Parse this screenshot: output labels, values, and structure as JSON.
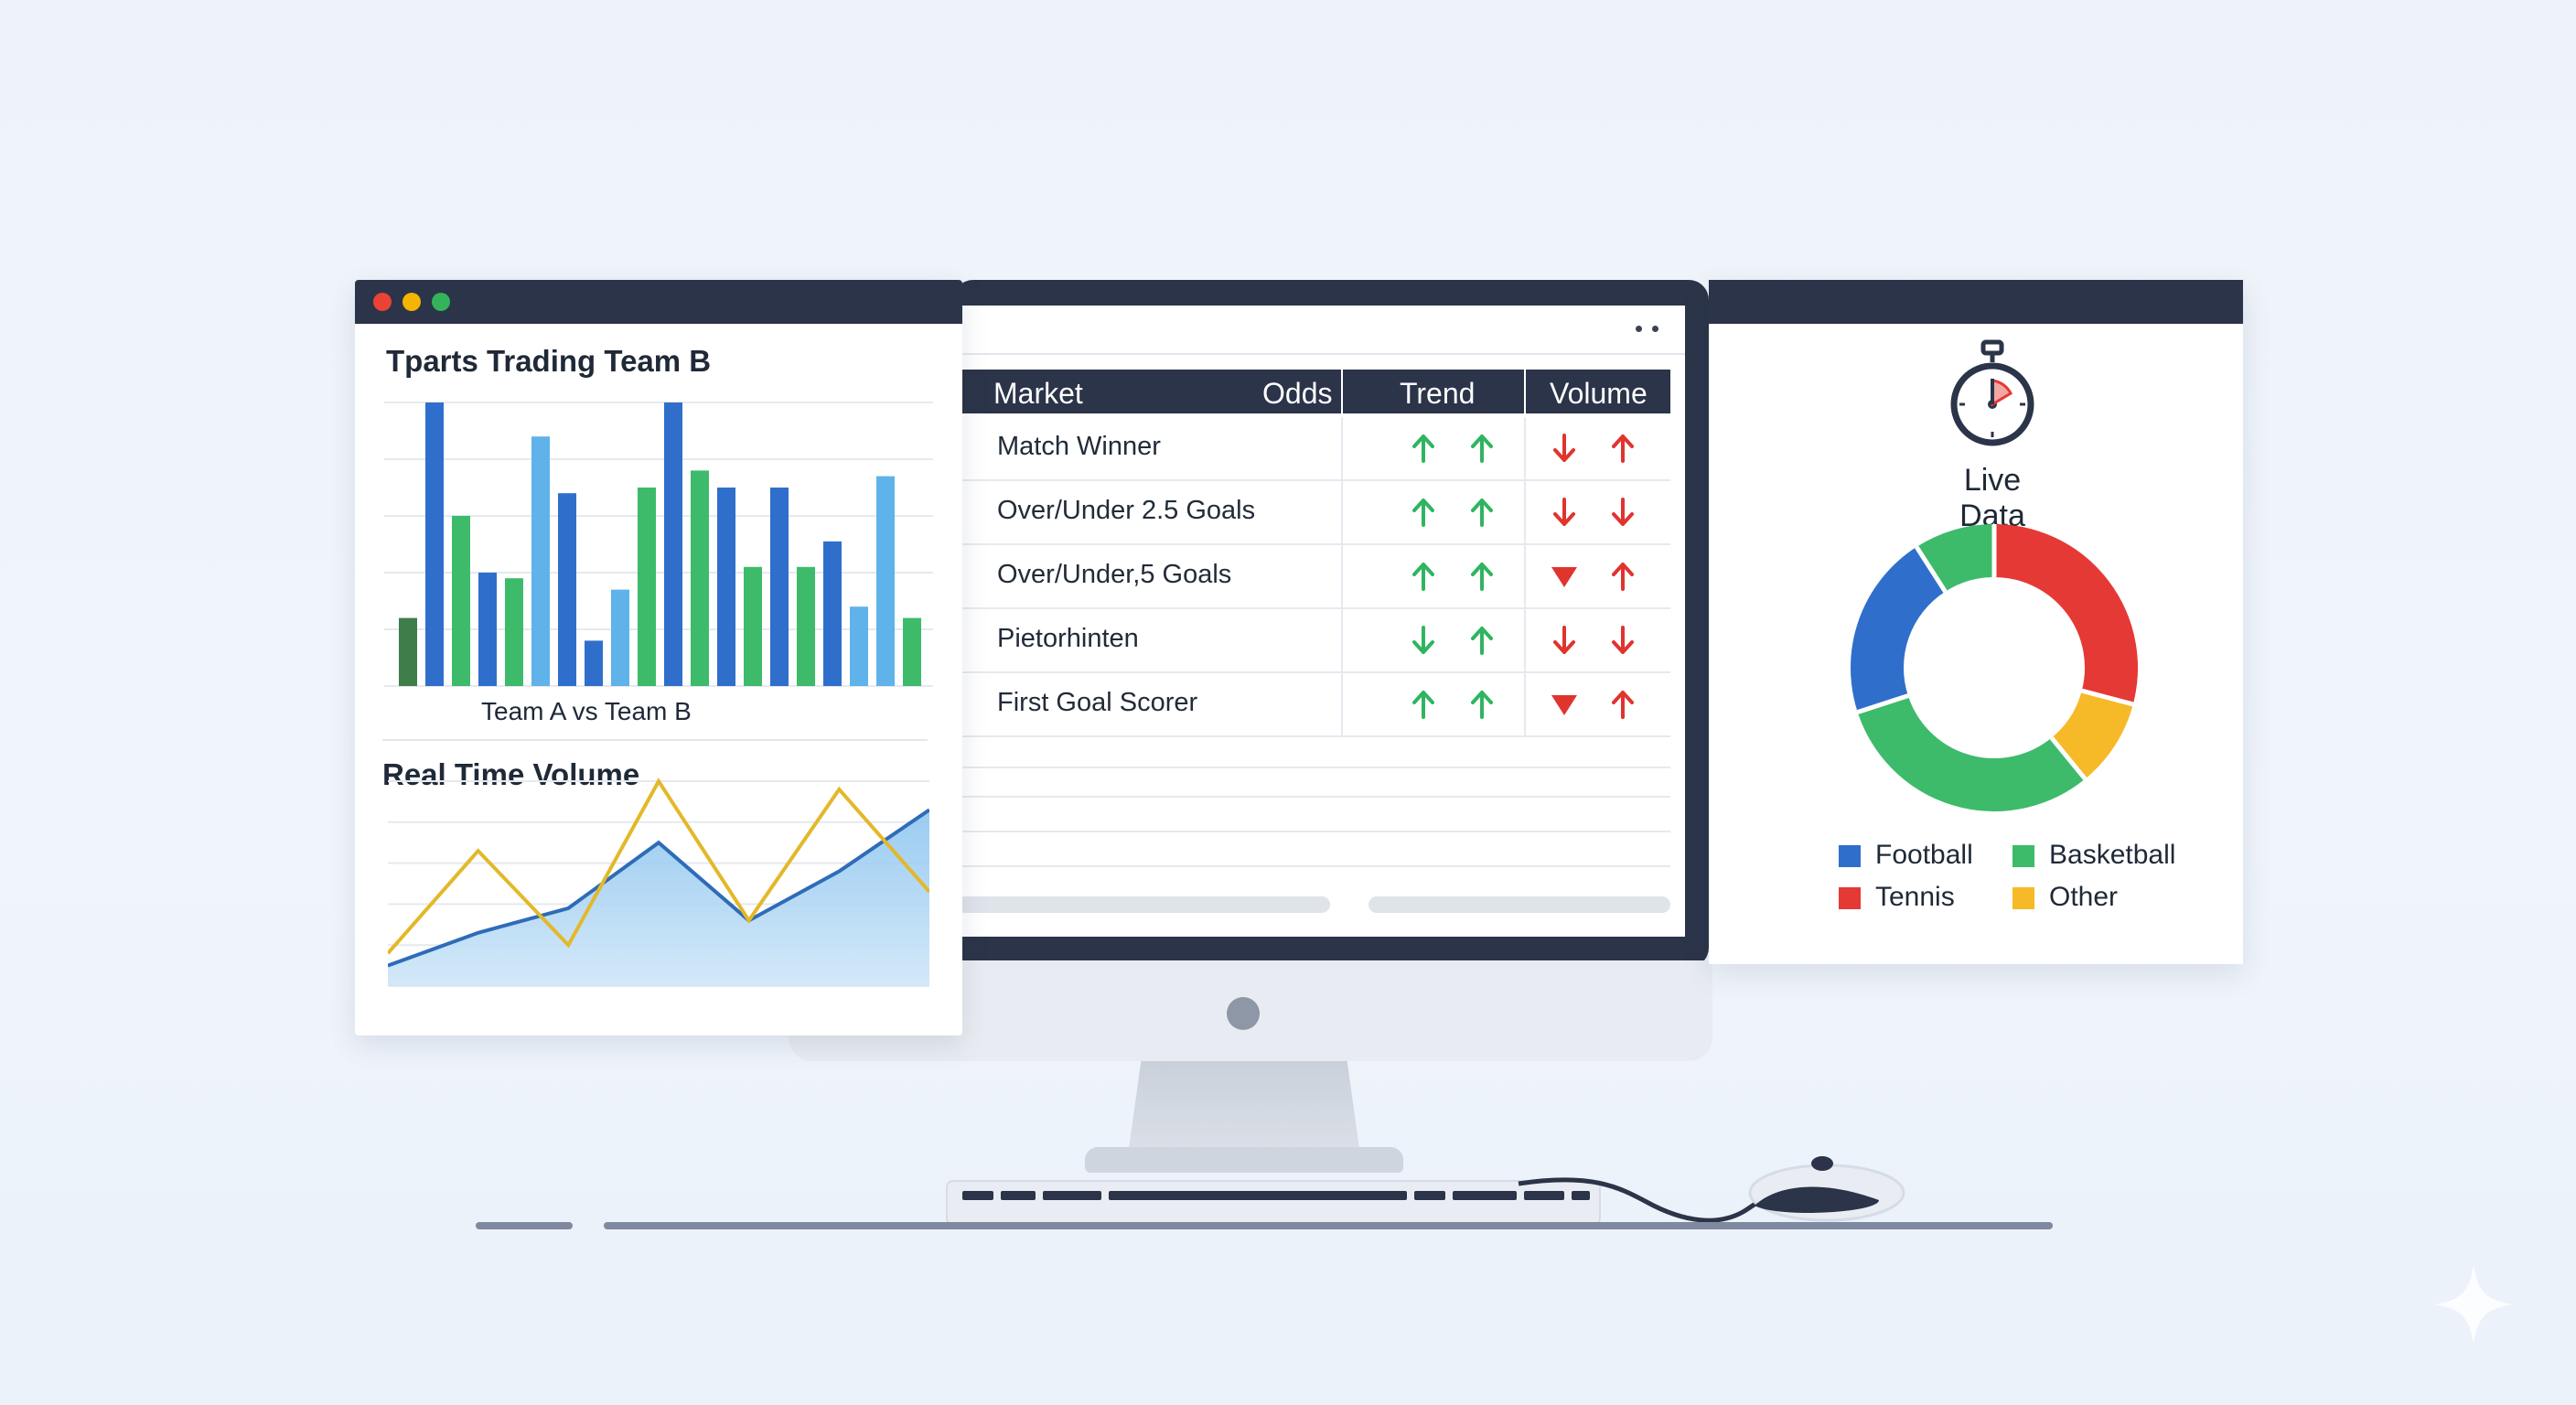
{
  "left_panel": {
    "chart_title": "Tparts Trading Team B",
    "chart_xlabel": "Team A vs Team B",
    "volume_title": "Real Time Volume"
  },
  "table": {
    "headers": {
      "market": "Market",
      "odds": "Odds",
      "trend": "Trend",
      "volume": "Volume"
    },
    "rows": [
      {
        "market": "Match Winner",
        "trend": [
          "up",
          "up"
        ],
        "volume": [
          "down",
          "up"
        ]
      },
      {
        "market": "Over/Under 2.5 Goals",
        "trend": [
          "up",
          "up"
        ],
        "volume": [
          "down",
          "down"
        ]
      },
      {
        "market": "Over/Under,5 Goals",
        "trend": [
          "up",
          "up"
        ],
        "volume": [
          "down-triangle",
          "up"
        ]
      },
      {
        "market": "Pietorhinten",
        "trend": [
          "down",
          "up"
        ],
        "volume": [
          "down",
          "down"
        ]
      },
      {
        "market": "First Goal Scorer",
        "trend": [
          "up",
          "up"
        ],
        "volume": [
          "down-triangle",
          "up"
        ]
      }
    ]
  },
  "right_panel": {
    "title": "Live Data",
    "icon": "stopwatch-icon"
  },
  "colors": {
    "dark_blue": "#2f6fcb",
    "light_blue": "#5fb3ea",
    "green": "#3dbb6b",
    "olive": "#3f7d4a",
    "red": "#e53935",
    "yellow": "#f6b928",
    "gold_line": "#e3b829",
    "blue_line": "#2e6cb8",
    "up_arrow": "#2fb560",
    "down_arrow": "#e0342e"
  },
  "chart_data": [
    {
      "type": "bar",
      "title": "Tparts Trading Team B",
      "xlabel": "Team A vs Team B",
      "ylim": [
        0,
        100
      ],
      "grid": true,
      "values": [
        24,
        100,
        60,
        40,
        38,
        88,
        68,
        16,
        34,
        70,
        100,
        76,
        70,
        42,
        70,
        42,
        51,
        28,
        74,
        24
      ],
      "bar_colors": [
        "olive",
        "dark_blue",
        "green",
        "dark_blue",
        "green",
        "light_blue",
        "dark_blue",
        "dark_blue",
        "light_blue",
        "green",
        "dark_blue",
        "green",
        "dark_blue",
        "green",
        "dark_blue",
        "green",
        "dark_blue",
        "light_blue",
        "light_blue",
        "green"
      ]
    },
    {
      "type": "area",
      "title": "Real Time Volume",
      "ylim": [
        0,
        100
      ],
      "grid": true,
      "x": [
        0,
        1,
        2,
        3,
        4,
        5,
        6
      ],
      "series": [
        {
          "values": [
            10,
            26,
            38,
            70,
            32,
            56,
            86
          ],
          "fill": true,
          "color": "blue_line"
        },
        {
          "values": [
            16,
            66,
            20,
            100,
            32,
            96,
            46
          ],
          "fill": false,
          "color": "gold_line"
        }
      ]
    },
    {
      "type": "pie",
      "donut": true,
      "title": "Live Data",
      "legend_position": "bottom",
      "slices": [
        {
          "label": "Tennis",
          "value": 32,
          "color": "red"
        },
        {
          "label": "Other",
          "value": 11,
          "color": "yellow"
        },
        {
          "label": "Basketball",
          "value": 34,
          "color": "green"
        },
        {
          "label": "Football",
          "value": 23,
          "color": "dark_blue"
        },
        {
          "label": "",
          "value": 10,
          "color": "green"
        }
      ],
      "legend": [
        {
          "label": "Football",
          "color": "dark_blue"
        },
        {
          "label": "Basketball",
          "color": "green"
        },
        {
          "label": "Tennis",
          "color": "red"
        },
        {
          "label": "Other",
          "color": "yellow"
        }
      ]
    }
  ]
}
